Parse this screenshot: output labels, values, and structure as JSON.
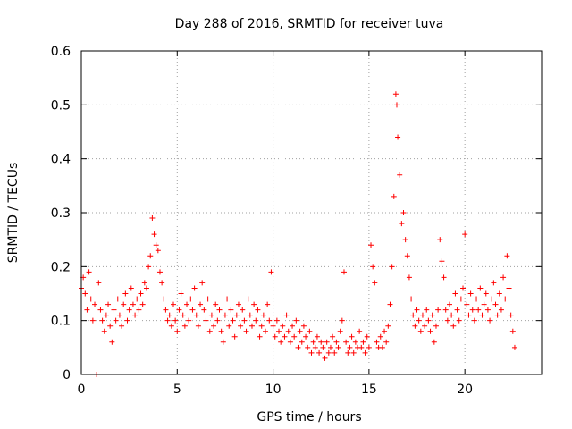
{
  "chart_data": {
    "type": "scatter",
    "title": "Day 288 of 2016, SRMTID for receiver tuva",
    "xlabel": "GPS time / hours",
    "ylabel": "SRMTID / TECUs",
    "xlim": [
      0,
      24
    ],
    "ylim": [
      0,
      0.6
    ],
    "xticks": [
      "0",
      "5",
      "10",
      "15",
      "20"
    ],
    "yticks": [
      "0",
      "0.1",
      "0.2",
      "0.3",
      "0.4",
      "0.5",
      "0.6"
    ],
    "grid": true,
    "marker": "plus",
    "series_color": "#ff0000",
    "series": [
      {
        "name": "SRMTID",
        "points": [
          [
            0.0,
            0.16
          ],
          [
            0.1,
            0.18
          ],
          [
            0.2,
            0.15
          ],
          [
            0.3,
            0.12
          ],
          [
            0.4,
            0.19
          ],
          [
            0.5,
            0.14
          ],
          [
            0.6,
            0.1
          ],
          [
            0.7,
            0.13
          ],
          [
            0.8,
            0.0
          ],
          [
            0.9,
            0.17
          ],
          [
            1.0,
            0.12
          ],
          [
            1.1,
            0.1
          ],
          [
            1.2,
            0.08
          ],
          [
            1.3,
            0.11
          ],
          [
            1.4,
            0.13
          ],
          [
            1.5,
            0.09
          ],
          [
            1.6,
            0.06
          ],
          [
            1.7,
            0.12
          ],
          [
            1.8,
            0.1
          ],
          [
            1.9,
            0.14
          ],
          [
            2.0,
            0.11
          ],
          [
            2.1,
            0.09
          ],
          [
            2.2,
            0.13
          ],
          [
            2.3,
            0.15
          ],
          [
            2.4,
            0.1
          ],
          [
            2.5,
            0.12
          ],
          [
            2.6,
            0.16
          ],
          [
            2.7,
            0.13
          ],
          [
            2.8,
            0.11
          ],
          [
            2.9,
            0.14
          ],
          [
            3.0,
            0.12
          ],
          [
            3.1,
            0.15
          ],
          [
            3.2,
            0.13
          ],
          [
            3.3,
            0.17
          ],
          [
            3.4,
            0.16
          ],
          [
            3.5,
            0.2
          ],
          [
            3.6,
            0.22
          ],
          [
            3.7,
            0.29
          ],
          [
            3.8,
            0.26
          ],
          [
            3.9,
            0.24
          ],
          [
            4.0,
            0.23
          ],
          [
            4.1,
            0.19
          ],
          [
            4.2,
            0.17
          ],
          [
            4.3,
            0.14
          ],
          [
            4.4,
            0.12
          ],
          [
            4.5,
            0.1
          ],
          [
            4.6,
            0.11
          ],
          [
            4.7,
            0.09
          ],
          [
            4.8,
            0.13
          ],
          [
            4.9,
            0.1
          ],
          [
            5.0,
            0.08
          ],
          [
            5.1,
            0.12
          ],
          [
            5.2,
            0.15
          ],
          [
            5.3,
            0.11
          ],
          [
            5.4,
            0.09
          ],
          [
            5.5,
            0.13
          ],
          [
            5.6,
            0.1
          ],
          [
            5.7,
            0.14
          ],
          [
            5.8,
            0.12
          ],
          [
            5.9,
            0.16
          ],
          [
            6.0,
            0.11
          ],
          [
            6.1,
            0.09
          ],
          [
            6.2,
            0.13
          ],
          [
            6.3,
            0.17
          ],
          [
            6.4,
            0.12
          ],
          [
            6.5,
            0.1
          ],
          [
            6.6,
            0.14
          ],
          [
            6.7,
            0.08
          ],
          [
            6.8,
            0.11
          ],
          [
            6.9,
            0.09
          ],
          [
            7.0,
            0.13
          ],
          [
            7.1,
            0.1
          ],
          [
            7.2,
            0.12
          ],
          [
            7.3,
            0.08
          ],
          [
            7.4,
            0.06
          ],
          [
            7.5,
            0.11
          ],
          [
            7.6,
            0.14
          ],
          [
            7.7,
            0.09
          ],
          [
            7.8,
            0.12
          ],
          [
            7.9,
            0.1
          ],
          [
            8.0,
            0.07
          ],
          [
            8.1,
            0.11
          ],
          [
            8.2,
            0.13
          ],
          [
            8.3,
            0.09
          ],
          [
            8.4,
            0.12
          ],
          [
            8.5,
            0.1
          ],
          [
            8.6,
            0.08
          ],
          [
            8.7,
            0.14
          ],
          [
            8.8,
            0.11
          ],
          [
            8.9,
            0.09
          ],
          [
            9.0,
            0.13
          ],
          [
            9.1,
            0.1
          ],
          [
            9.2,
            0.12
          ],
          [
            9.3,
            0.07
          ],
          [
            9.4,
            0.09
          ],
          [
            9.5,
            0.11
          ],
          [
            9.6,
            0.08
          ],
          [
            9.7,
            0.13
          ],
          [
            9.8,
            0.1
          ],
          [
            9.9,
            0.19
          ],
          [
            10.0,
            0.09
          ],
          [
            10.1,
            0.07
          ],
          [
            10.2,
            0.1
          ],
          [
            10.3,
            0.08
          ],
          [
            10.4,
            0.06
          ],
          [
            10.5,
            0.09
          ],
          [
            10.6,
            0.07
          ],
          [
            10.7,
            0.11
          ],
          [
            10.8,
            0.08
          ],
          [
            10.9,
            0.06
          ],
          [
            11.0,
            0.09
          ],
          [
            11.1,
            0.07
          ],
          [
            11.2,
            0.1
          ],
          [
            11.3,
            0.05
          ],
          [
            11.4,
            0.08
          ],
          [
            11.5,
            0.06
          ],
          [
            11.6,
            0.09
          ],
          [
            11.7,
            0.07
          ],
          [
            11.8,
            0.05
          ],
          [
            11.9,
            0.08
          ],
          [
            12.0,
            0.04
          ],
          [
            12.1,
            0.06
          ],
          [
            12.2,
            0.05
          ],
          [
            12.3,
            0.07
          ],
          [
            12.4,
            0.04
          ],
          [
            12.5,
            0.06
          ],
          [
            12.6,
            0.05
          ],
          [
            12.7,
            0.03
          ],
          [
            12.8,
            0.06
          ],
          [
            12.9,
            0.04
          ],
          [
            13.0,
            0.05
          ],
          [
            13.1,
            0.07
          ],
          [
            13.2,
            0.04
          ],
          [
            13.3,
            0.06
          ],
          [
            13.4,
            0.05
          ],
          [
            13.5,
            0.08
          ],
          [
            13.6,
            0.1
          ],
          [
            13.7,
            0.19
          ],
          [
            13.8,
            0.06
          ],
          [
            13.9,
            0.04
          ],
          [
            14.0,
            0.05
          ],
          [
            14.1,
            0.07
          ],
          [
            14.2,
            0.04
          ],
          [
            14.3,
            0.06
          ],
          [
            14.4,
            0.05
          ],
          [
            14.5,
            0.08
          ],
          [
            14.6,
            0.05
          ],
          [
            14.7,
            0.06
          ],
          [
            14.8,
            0.04
          ],
          [
            14.9,
            0.07
          ],
          [
            15.0,
            0.05
          ],
          [
            15.1,
            0.24
          ],
          [
            15.2,
            0.2
          ],
          [
            15.3,
            0.17
          ],
          [
            15.4,
            0.06
          ],
          [
            15.5,
            0.05
          ],
          [
            15.6,
            0.07
          ],
          [
            15.7,
            0.05
          ],
          [
            15.8,
            0.08
          ],
          [
            15.9,
            0.06
          ],
          [
            16.0,
            0.09
          ],
          [
            16.1,
            0.13
          ],
          [
            16.2,
            0.2
          ],
          [
            16.3,
            0.33
          ],
          [
            16.4,
            0.52
          ],
          [
            16.45,
            0.5
          ],
          [
            16.5,
            0.44
          ],
          [
            16.6,
            0.37
          ],
          [
            16.7,
            0.28
          ],
          [
            16.8,
            0.3
          ],
          [
            16.9,
            0.25
          ],
          [
            17.0,
            0.22
          ],
          [
            17.1,
            0.18
          ],
          [
            17.2,
            0.14
          ],
          [
            17.3,
            0.11
          ],
          [
            17.4,
            0.09
          ],
          [
            17.5,
            0.12
          ],
          [
            17.6,
            0.1
          ],
          [
            17.7,
            0.08
          ],
          [
            17.8,
            0.11
          ],
          [
            17.9,
            0.09
          ],
          [
            18.0,
            0.12
          ],
          [
            18.1,
            0.1
          ],
          [
            18.2,
            0.08
          ],
          [
            18.3,
            0.11
          ],
          [
            18.4,
            0.06
          ],
          [
            18.5,
            0.09
          ],
          [
            18.6,
            0.12
          ],
          [
            18.7,
            0.25
          ],
          [
            18.8,
            0.21
          ],
          [
            18.9,
            0.18
          ],
          [
            19.0,
            0.12
          ],
          [
            19.1,
            0.1
          ],
          [
            19.2,
            0.13
          ],
          [
            19.3,
            0.11
          ],
          [
            19.4,
            0.09
          ],
          [
            19.5,
            0.15
          ],
          [
            19.6,
            0.12
          ],
          [
            19.7,
            0.1
          ],
          [
            19.8,
            0.14
          ],
          [
            19.9,
            0.16
          ],
          [
            20.0,
            0.26
          ],
          [
            20.1,
            0.13
          ],
          [
            20.2,
            0.11
          ],
          [
            20.3,
            0.15
          ],
          [
            20.4,
            0.12
          ],
          [
            20.5,
            0.1
          ],
          [
            20.6,
            0.14
          ],
          [
            20.7,
            0.12
          ],
          [
            20.8,
            0.16
          ],
          [
            20.9,
            0.11
          ],
          [
            21.0,
            0.13
          ],
          [
            21.1,
            0.15
          ],
          [
            21.2,
            0.12
          ],
          [
            21.3,
            0.1
          ],
          [
            21.4,
            0.14
          ],
          [
            21.5,
            0.17
          ],
          [
            21.6,
            0.13
          ],
          [
            21.7,
            0.11
          ],
          [
            21.8,
            0.15
          ],
          [
            21.9,
            0.12
          ],
          [
            22.0,
            0.18
          ],
          [
            22.1,
            0.14
          ],
          [
            22.2,
            0.22
          ],
          [
            22.3,
            0.16
          ],
          [
            22.4,
            0.11
          ],
          [
            22.5,
            0.08
          ],
          [
            22.6,
            0.05
          ]
        ]
      }
    ]
  }
}
